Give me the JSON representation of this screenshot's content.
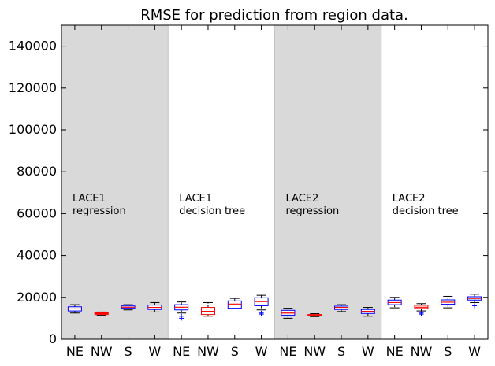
{
  "chart_data": {
    "type": "box",
    "title": "RMSE for prediction from region data.",
    "xlabel": "",
    "ylabel": "",
    "ylim": [
      0,
      150000
    ],
    "yticks": [
      0,
      20000,
      40000,
      60000,
      80000,
      100000,
      120000,
      140000
    ],
    "ytick_labels": [
      "0",
      "20000",
      "40000",
      "60000",
      "80000",
      "100000",
      "120000",
      "140000"
    ],
    "categories": [
      "NE",
      "NW",
      "S",
      "W",
      "NE",
      "NW",
      "S",
      "W",
      "NE",
      "NW",
      "S",
      "W",
      "NE",
      "NW",
      "S",
      "W"
    ],
    "groups": [
      {
        "label": [
          "LACE1",
          "regression"
        ],
        "shaded": true
      },
      {
        "label": [
          "LACE1",
          " decision tree"
        ],
        "shaded": false
      },
      {
        "label": [
          "LACE2",
          "regression"
        ],
        "shaded": true
      },
      {
        "label": [
          "LACE2",
          " decision tree"
        ],
        "shaded": false
      }
    ],
    "boxes": [
      {
        "category": "NE",
        "whisker_low": 12500,
        "q1": 13500,
        "median": 14500,
        "q3": 15500,
        "whisker_high": 16500,
        "outliers": [],
        "color": "blue"
      },
      {
        "category": "NW",
        "whisker_low": 11500,
        "q1": 11800,
        "median": 12200,
        "q3": 12600,
        "whisker_high": 13000,
        "outliers": [],
        "color": "red"
      },
      {
        "category": "S",
        "whisker_low": 14000,
        "q1": 14800,
        "median": 15300,
        "q3": 15900,
        "whisker_high": 16500,
        "outliers": [],
        "color": "blue"
      },
      {
        "category": "W",
        "whisker_low": 13000,
        "q1": 14200,
        "median": 15200,
        "q3": 16300,
        "whisker_high": 17500,
        "outliers": [],
        "color": "blue"
      },
      {
        "category": "NE",
        "whisker_low": 12500,
        "q1": 14000,
        "median": 15300,
        "q3": 16500,
        "whisker_high": 17800,
        "outliers": [
          11000,
          10000
        ],
        "color": "blue"
      },
      {
        "category": "NW",
        "whisker_low": 11000,
        "q1": 11800,
        "median": 13300,
        "q3": 15200,
        "whisker_high": 17500,
        "outliers": [],
        "color": "red"
      },
      {
        "category": "S",
        "whisker_low": 14500,
        "q1": 14800,
        "median": 16800,
        "q3": 18300,
        "whisker_high": 19500,
        "outliers": [],
        "color": "blue"
      },
      {
        "category": "W",
        "whisker_low": 14000,
        "q1": 16000,
        "median": 18000,
        "q3": 19800,
        "whisker_high": 21000,
        "outliers": [
          12500,
          12000
        ],
        "color": "blue"
      },
      {
        "category": "NE",
        "whisker_low": 10000,
        "q1": 11500,
        "median": 12500,
        "q3": 13800,
        "whisker_high": 14800,
        "outliers": [],
        "color": "blue"
      },
      {
        "category": "NW",
        "whisker_low": 10800,
        "q1": 11100,
        "median": 11500,
        "q3": 11800,
        "whisker_high": 12200,
        "outliers": [],
        "color": "red"
      },
      {
        "category": "S",
        "whisker_low": 13200,
        "q1": 14200,
        "median": 15200,
        "q3": 15800,
        "whisker_high": 16500,
        "outliers": [],
        "color": "blue"
      },
      {
        "category": "W",
        "whisker_low": 11000,
        "q1": 12300,
        "median": 13300,
        "q3": 14200,
        "whisker_high": 15200,
        "outliers": [],
        "color": "blue"
      },
      {
        "category": "NE",
        "whisker_low": 15000,
        "q1": 16500,
        "median": 17500,
        "q3": 18700,
        "whisker_high": 20000,
        "outliers": [],
        "color": "blue"
      },
      {
        "category": "NW",
        "whisker_low": 13500,
        "q1": 14700,
        "median": 15300,
        "q3": 16200,
        "whisker_high": 17000,
        "outliers": [
          12500,
          12000
        ],
        "color": "red"
      },
      {
        "category": "S",
        "whisker_low": 15000,
        "q1": 16700,
        "median": 17700,
        "q3": 18800,
        "whisker_high": 20500,
        "outliers": [],
        "color": "blue"
      },
      {
        "category": "W",
        "whisker_low": 17500,
        "q1": 18700,
        "median": 19500,
        "q3": 20300,
        "whisker_high": 21500,
        "outliers": [
          16000
        ],
        "color": "blue"
      }
    ],
    "shade_color": "#d9d9d9",
    "grid": false,
    "legend": "none"
  }
}
